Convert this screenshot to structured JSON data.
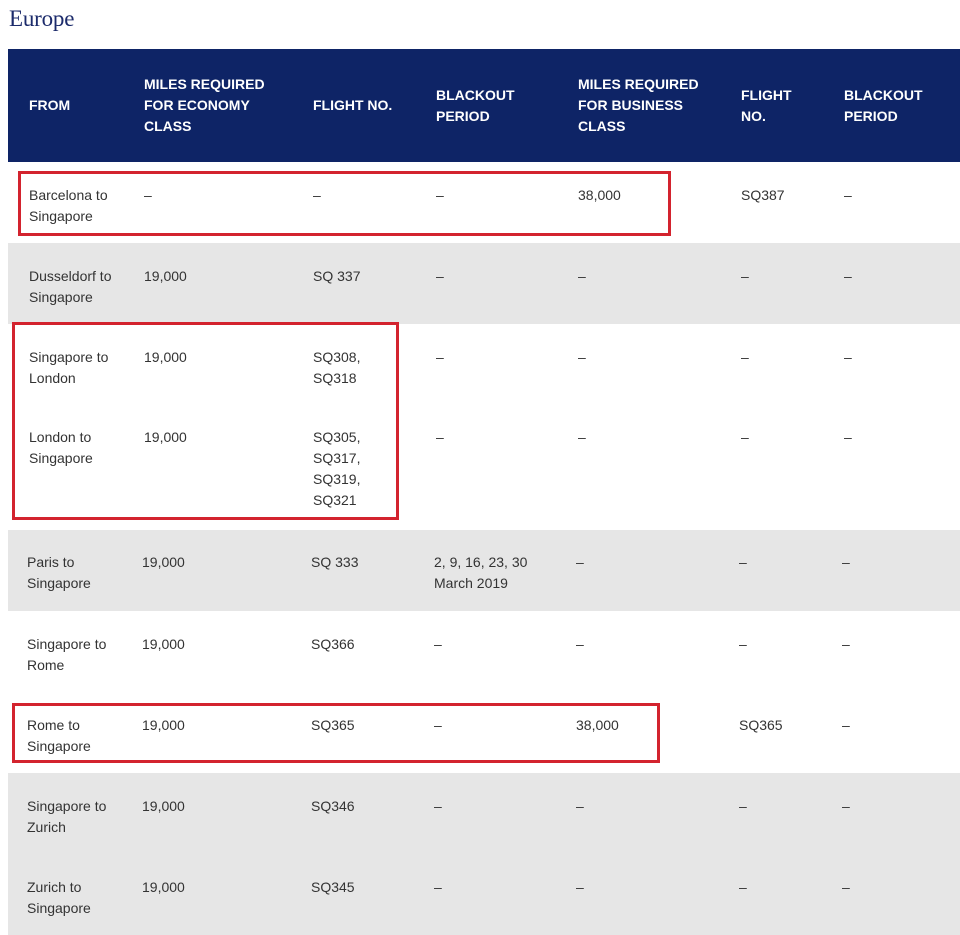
{
  "section": {
    "title": "Europe"
  },
  "table": {
    "headers": [
      "FROM",
      "MILES REQUIRED FOR ECONOMY CLASS",
      "FLIGHT NO.",
      "BLACKOUT PERIOD",
      "MILES REQUIRED FOR BUSINESS CLASS",
      "FLIGHT NO.",
      "BLACKOUT PERIOD"
    ],
    "rows": [
      {
        "shade": "white",
        "highlighted": true,
        "cells": [
          "Barcelona to Singapore",
          "–",
          "–",
          "–",
          "38,000",
          "SQ387",
          "–"
        ]
      },
      {
        "shade": "shaded",
        "highlighted": false,
        "cells": [
          "Dusseldorf to Singapore",
          "19,000",
          "SQ 337",
          "–",
          "–",
          "–",
          "–"
        ]
      },
      {
        "shade": "white",
        "highlighted": true,
        "cells": [
          "Singapore to London",
          "19,000",
          "SQ308, SQ318",
          "–",
          "–",
          "–",
          "–"
        ]
      },
      {
        "shade": "white",
        "highlighted": true,
        "cells": [
          "London to Singapore",
          "19,000",
          "SQ305, SQ317, SQ319, SQ321",
          "–",
          "–",
          "–",
          "–"
        ]
      },
      {
        "shade": "shaded",
        "highlighted": false,
        "cells": [
          "Paris to Singapore",
          "19,000",
          "SQ 333",
          "2, 9, 16, 23, 30 March 2019",
          "–",
          "–",
          "–"
        ]
      },
      {
        "shade": "white",
        "highlighted": false,
        "cells": [
          "Singapore to Rome",
          "19,000",
          "SQ366",
          "–",
          "–",
          "–",
          "–"
        ]
      },
      {
        "shade": "white",
        "highlighted": true,
        "cells": [
          "Rome to Singapore",
          "19,000",
          "SQ365",
          "–",
          "38,000",
          "SQ365",
          "–"
        ]
      },
      {
        "shade": "shaded",
        "highlighted": false,
        "cells": [
          "Singapore to Zurich",
          "19,000",
          "SQ346",
          "–",
          "–",
          "–",
          "–"
        ]
      },
      {
        "shade": "shaded",
        "highlighted": false,
        "cells": [
          "Zurich to Singapore",
          "19,000",
          "SQ345",
          "–",
          "–",
          "–",
          "–"
        ]
      }
    ]
  },
  "colors": {
    "header_bg": "#0e2466",
    "title": "#1c2b6b",
    "row_shade": "#e6e6e6",
    "highlight_border": "#d3232e"
  }
}
